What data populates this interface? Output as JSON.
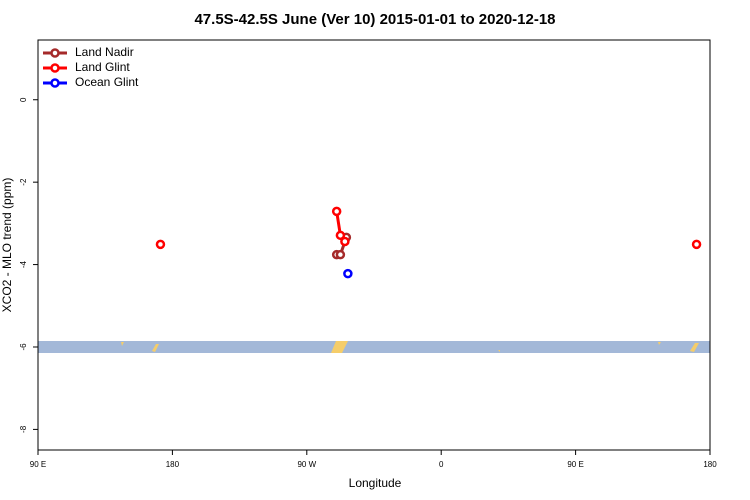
{
  "chart_data": {
    "type": "line",
    "title": "47.5S-42.5S June (Ver 10)   2015-01-01 to 2020-12-18",
    "x_label": "Longitude",
    "y_label": "XCO2 - MLO trend (ppm)",
    "xlim": [
      90,
      540
    ],
    "ylim": [
      -8.5,
      1.45
    ],
    "xticks": [
      {
        "value": 90,
        "label": "90 E"
      },
      {
        "value": 180,
        "label": "180"
      },
      {
        "value": 270,
        "label": "90 W"
      },
      {
        "value": 360,
        "label": "0"
      },
      {
        "value": 450,
        "label": "90 E"
      },
      {
        "value": 540,
        "label": "180"
      }
    ],
    "yticks": [
      0,
      -2,
      -4,
      -6,
      -8
    ],
    "legend": "top-left",
    "series": [
      {
        "name": "Land Nadir",
        "color": "#a52a2a",
        "x": [
          290,
          292.5,
          296.5
        ],
        "values": [
          -3.76,
          -3.76,
          -3.34
        ]
      },
      {
        "name": "Land Glint",
        "color": "#ff0000",
        "x": [
          172,
          null,
          290,
          292.5,
          295.5,
          null,
          531
        ],
        "values": [
          -3.51,
          null,
          -2.71,
          -3.29,
          -3.44,
          null,
          -3.51
        ]
      },
      {
        "name": "Ocean Glint",
        "color": "#0000ff",
        "x": [
          297.5
        ],
        "values": [
          -4.22
        ]
      }
    ]
  }
}
